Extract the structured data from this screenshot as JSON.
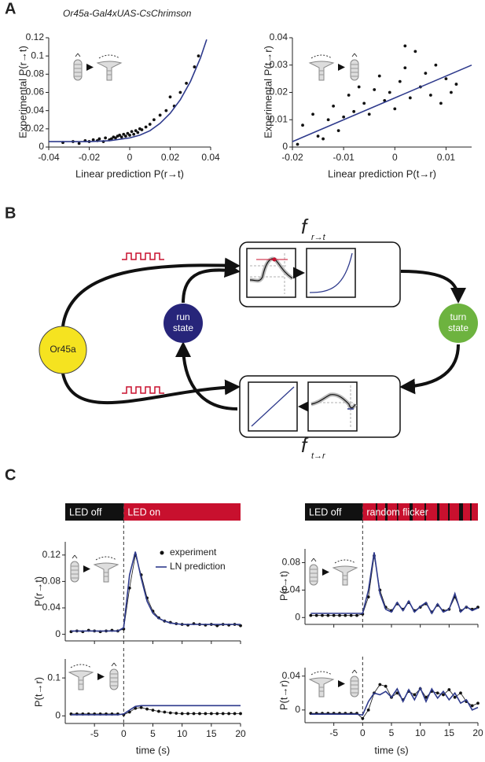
{
  "panels": [
    "A",
    "B",
    "C"
  ],
  "diagram": {
    "nodes": [
      {
        "label": "Or45a"
      },
      {
        "label": "run state"
      },
      {
        "label": "turn state"
      }
    ],
    "functions": [
      {
        "name": "f",
        "subscript": "r→t"
      },
      {
        "name": "f",
        "subscript": "t→r"
      }
    ]
  },
  "chart_data": [
    {
      "type": "scatter",
      "title": "Or45a-Gal4xUAS-CsChrimson",
      "xlabel": "Linear prediction P(r→t)",
      "ylabel": "Experimental P(r→t)",
      "xlim": [
        -0.04,
        0.04
      ],
      "xticks": [
        -0.04,
        -0.02,
        0,
        0.02,
        0.04
      ],
      "ylim": [
        0,
        0.12
      ],
      "yticks": [
        0,
        0.02,
        0.04,
        0.06,
        0.08,
        0.1,
        0.12
      ],
      "series": [
        {
          "kind": "points",
          "color": "#111111",
          "x": [
            -0.033,
            -0.028,
            -0.025,
            -0.022,
            -0.02,
            -0.018,
            -0.016,
            -0.015,
            -0.013,
            -0.012,
            -0.01,
            -0.009,
            -0.008,
            -0.007,
            -0.006,
            -0.005,
            -0.004,
            -0.003,
            -0.002,
            -0.001,
            0,
            0.001,
            0.002,
            0.003,
            0.004,
            0.005,
            0.006,
            0.008,
            0.01,
            0.012,
            0.015,
            0.018,
            0.02,
            0.022,
            0.025,
            0.028,
            0.032,
            0.034
          ],
          "values": [
            0.005,
            0.006,
            0.004,
            0.007,
            0.006,
            0.008,
            0.007,
            0.009,
            0.006,
            0.01,
            0.008,
            0.009,
            0.011,
            0.01,
            0.012,
            0.013,
            0.011,
            0.014,
            0.012,
            0.015,
            0.013,
            0.017,
            0.014,
            0.018,
            0.016,
            0.02,
            0.019,
            0.022,
            0.025,
            0.03,
            0.035,
            0.04,
            0.055,
            0.045,
            0.06,
            0.07,
            0.088,
            0.1
          ]
        },
        {
          "kind": "line",
          "color": "#2e3a8c",
          "x": [
            -0.04,
            -0.02,
            -0.01,
            0,
            0.005,
            0.01,
            0.015,
            0.02,
            0.025,
            0.03,
            0.035,
            0.038
          ],
          "values": [
            0.006,
            0.006,
            0.007,
            0.01,
            0.013,
            0.018,
            0.026,
            0.037,
            0.052,
            0.072,
            0.098,
            0.118
          ]
        }
      ]
    },
    {
      "type": "scatter",
      "xlabel": "Linear prediction P(t→r)",
      "ylabel": "Experimental P(t→r)",
      "xlim": [
        -0.02,
        0.015
      ],
      "xticks": [
        -0.02,
        -0.01,
        0,
        0.01
      ],
      "ylim": [
        0,
        0.04
      ],
      "yticks": [
        0,
        0.01,
        0.02,
        0.03,
        0.04
      ],
      "series": [
        {
          "kind": "points",
          "color": "#111111",
          "x": [
            -0.019,
            -0.018,
            -0.016,
            -0.015,
            -0.014,
            -0.013,
            -0.012,
            -0.011,
            -0.01,
            -0.009,
            -0.008,
            -0.007,
            -0.006,
            -0.005,
            -0.004,
            -0.003,
            -0.002,
            -0.001,
            0,
            0.001,
            0.002,
            0.002,
            0.003,
            0.004,
            0.005,
            0.006,
            0.007,
            0.008,
            0.009,
            0.01,
            0.011,
            0.012
          ],
          "values": [
            0.001,
            0.008,
            0.012,
            0.004,
            0.003,
            0.01,
            0.015,
            0.006,
            0.011,
            0.019,
            0.013,
            0.022,
            0.016,
            0.012,
            0.021,
            0.026,
            0.017,
            0.02,
            0.014,
            0.024,
            0.037,
            0.029,
            0.018,
            0.035,
            0.022,
            0.027,
            0.019,
            0.03,
            0.016,
            0.025,
            0.02,
            0.023
          ]
        },
        {
          "kind": "line",
          "color": "#2e3a8c",
          "x": [
            -0.02,
            0.015
          ],
          "values": [
            0.002,
            0.03
          ]
        }
      ]
    },
    {
      "type": "line",
      "ylabel": "P(r→t)",
      "xlim": [
        -10,
        20
      ],
      "xticks": [
        -5,
        0,
        5,
        10,
        15,
        20
      ],
      "xtick_labels": false,
      "ylim": [
        -0.01,
        0.14
      ],
      "yticks": [
        0,
        0.04,
        0.08,
        0.12
      ],
      "vline": 0,
      "stimulus": [
        {
          "label": "LED off",
          "start": -10,
          "end": 0,
          "color": "#111111"
        },
        {
          "label": "LED on",
          "start": 0,
          "end": 20,
          "color": "#c8102e"
        }
      ],
      "series": [
        {
          "name": "experiment",
          "kind": "points-line",
          "color": "#111111",
          "x": [
            -9,
            -8,
            -7,
            -6,
            -5,
            -4,
            -3,
            -2,
            -1,
            0,
            1,
            2,
            3,
            4,
            5,
            6,
            7,
            8,
            9,
            10,
            11,
            12,
            13,
            14,
            15,
            16,
            17,
            18,
            19,
            20
          ],
          "values": [
            0.004,
            0.005,
            0.004,
            0.006,
            0.005,
            0.004,
            0.005,
            0.006,
            0.005,
            0.008,
            0.07,
            0.12,
            0.09,
            0.055,
            0.035,
            0.025,
            0.02,
            0.018,
            0.016,
            0.015,
            0.014,
            0.016,
            0.015,
            0.014,
            0.015,
            0.013,
            0.015,
            0.014,
            0.015,
            0.013
          ]
        },
        {
          "name": "LN prediction",
          "kind": "line",
          "color": "#2e3a8c",
          "x": [
            -9,
            -8,
            -7,
            -6,
            -5,
            -4,
            -3,
            -2,
            -1,
            0,
            1,
            2,
            3,
            4,
            5,
            6,
            7,
            8,
            9,
            10,
            11,
            12,
            13,
            14,
            15,
            16,
            17,
            18,
            19,
            20
          ],
          "values": [
            0.005,
            0.005,
            0.005,
            0.005,
            0.005,
            0.005,
            0.005,
            0.005,
            0.005,
            0.01,
            0.09,
            0.125,
            0.085,
            0.05,
            0.032,
            0.024,
            0.02,
            0.017,
            0.016,
            0.015,
            0.015,
            0.015,
            0.015,
            0.015,
            0.015,
            0.015,
            0.015,
            0.015,
            0.015,
            0.015
          ]
        }
      ]
    },
    {
      "type": "line",
      "ylabel": "P(t→r)",
      "xlabel": "time (s)",
      "xlim": [
        -10,
        20
      ],
      "xticks": [
        -5,
        0,
        5,
        10,
        15,
        20
      ],
      "ylim": [
        -0.02,
        0.15
      ],
      "yticks": [
        0,
        0.1
      ],
      "vline": 0,
      "series": [
        {
          "kind": "points-line",
          "color": "#111111",
          "x": [
            -9,
            -8,
            -7,
            -6,
            -5,
            -4,
            -3,
            -2,
            -1,
            0,
            1,
            2,
            3,
            4,
            5,
            6,
            7,
            8,
            9,
            10,
            11,
            12,
            13,
            14,
            15,
            16,
            17,
            18,
            19,
            20
          ],
          "values": [
            0.005,
            0.005,
            0.005,
            0.005,
            0.005,
            0.005,
            0.005,
            0.005,
            0.005,
            0.003,
            0.01,
            0.02,
            0.022,
            0.018,
            0.015,
            0.012,
            0.01,
            0.008,
            0.007,
            0.006,
            0.006,
            0.006,
            0.006,
            0.006,
            0.006,
            0.006,
            0.006,
            0.006,
            0.006,
            0.006
          ]
        },
        {
          "kind": "line",
          "color": "#2e3a8c",
          "x": [
            -9,
            -8,
            -7,
            -6,
            -5,
            -4,
            -3,
            -2,
            -1,
            0,
            1,
            2,
            3,
            4,
            5,
            6,
            7,
            8,
            9,
            10,
            11,
            12,
            13,
            14,
            15,
            16,
            17,
            18,
            19,
            20
          ],
          "values": [
            0.003,
            0.003,
            0.003,
            0.003,
            0.003,
            0.003,
            0.003,
            0.003,
            0.003,
            0.005,
            0.015,
            0.025,
            0.027,
            0.027,
            0.027,
            0.027,
            0.027,
            0.027,
            0.027,
            0.027,
            0.027,
            0.027,
            0.027,
            0.027,
            0.027,
            0.027,
            0.027,
            0.027,
            0.027,
            0.027
          ]
        }
      ]
    },
    {
      "type": "line",
      "ylabel": "P(r→t)",
      "xlim": [
        -10,
        20
      ],
      "xticks": [
        -5,
        0,
        5,
        10,
        15,
        20
      ],
      "xtick_labels": false,
      "ylim": [
        -0.01,
        0.1
      ],
      "yticks": [
        0,
        0.04,
        0.08
      ],
      "vline": 0,
      "stimulus": [
        {
          "label": "LED off",
          "start": -10,
          "end": 0,
          "color": "#111111"
        },
        {
          "label": "random flicker",
          "start": 0,
          "end": 20,
          "color": "#c8102e"
        }
      ],
      "series": [
        {
          "kind": "points-line",
          "color": "#111111",
          "x": [
            -9,
            -8,
            -7,
            -6,
            -5,
            -4,
            -3,
            -2,
            -1,
            0,
            1,
            2,
            3,
            4,
            5,
            6,
            7,
            8,
            9,
            10,
            11,
            12,
            13,
            14,
            15,
            16,
            17,
            18,
            19,
            20
          ],
          "values": [
            0.003,
            0.003,
            0.003,
            0.003,
            0.003,
            0.003,
            0.003,
            0.003,
            0.003,
            0.005,
            0.03,
            0.09,
            0.04,
            0.015,
            0.01,
            0.02,
            0.012,
            0.022,
            0.01,
            0.015,
            0.02,
            0.008,
            0.018,
            0.01,
            0.012,
            0.03,
            0.01,
            0.015,
            0.012,
            0.015
          ]
        },
        {
          "kind": "line",
          "color": "#2e3a8c",
          "x": [
            -9,
            -8,
            -7,
            -6,
            -5,
            -4,
            -3,
            -2,
            -1,
            0,
            1,
            2,
            3,
            4,
            5,
            6,
            7,
            8,
            9,
            10,
            11,
            12,
            13,
            14,
            15,
            16,
            17,
            18,
            19,
            20
          ],
          "values": [
            0.006,
            0.006,
            0.006,
            0.006,
            0.006,
            0.006,
            0.006,
            0.006,
            0.006,
            0.006,
            0.04,
            0.095,
            0.035,
            0.012,
            0.008,
            0.022,
            0.01,
            0.024,
            0.008,
            0.016,
            0.022,
            0.006,
            0.02,
            0.008,
            0.012,
            0.035,
            0.008,
            0.016,
            0.01,
            0.014
          ]
        }
      ]
    },
    {
      "type": "line",
      "ylabel": "P(t→r)",
      "xlabel": "time (s)",
      "xlim": [
        -10,
        20
      ],
      "xticks": [
        -5,
        0,
        5,
        10,
        15,
        20
      ],
      "ylim": [
        -0.015,
        0.05
      ],
      "yticks": [
        0,
        0.04
      ],
      "vline": 0,
      "series": [
        {
          "kind": "points-line",
          "color": "#111111",
          "x": [
            -9,
            -8,
            -7,
            -6,
            -5,
            -4,
            -3,
            -2,
            -1,
            0,
            1,
            2,
            3,
            4,
            5,
            6,
            7,
            8,
            9,
            10,
            11,
            12,
            13,
            14,
            15,
            16,
            17,
            18,
            19,
            20
          ],
          "values": [
            -0.004,
            -0.004,
            -0.004,
            -0.004,
            -0.004,
            -0.004,
            -0.004,
            -0.004,
            -0.004,
            -0.01,
            0,
            0.02,
            0.03,
            0.028,
            0.015,
            0.02,
            0.012,
            0.022,
            0.018,
            0.025,
            0.015,
            0.022,
            0.02,
            0.018,
            0.024,
            0.015,
            0.02,
            0.01,
            0.005,
            0.008
          ]
        },
        {
          "kind": "line",
          "color": "#2e3a8c",
          "x": [
            -9,
            -8,
            -7,
            -6,
            -5,
            -4,
            -3,
            -2,
            -1,
            0,
            1,
            2,
            3,
            4,
            5,
            6,
            7,
            8,
            9,
            10,
            11,
            12,
            13,
            14,
            15,
            16,
            17,
            18,
            19,
            20
          ],
          "values": [
            -0.005,
            -0.005,
            -0.005,
            -0.005,
            -0.005,
            -0.005,
            -0.005,
            -0.005,
            -0.005,
            -0.006,
            0.01,
            0.02,
            0.018,
            0.022,
            0.015,
            0.025,
            0.01,
            0.024,
            0.012,
            0.026,
            0.01,
            0.025,
            0.014,
            0.022,
            0.012,
            0.02,
            0.008,
            0.012,
            0,
            0.003
          ]
        }
      ]
    }
  ]
}
